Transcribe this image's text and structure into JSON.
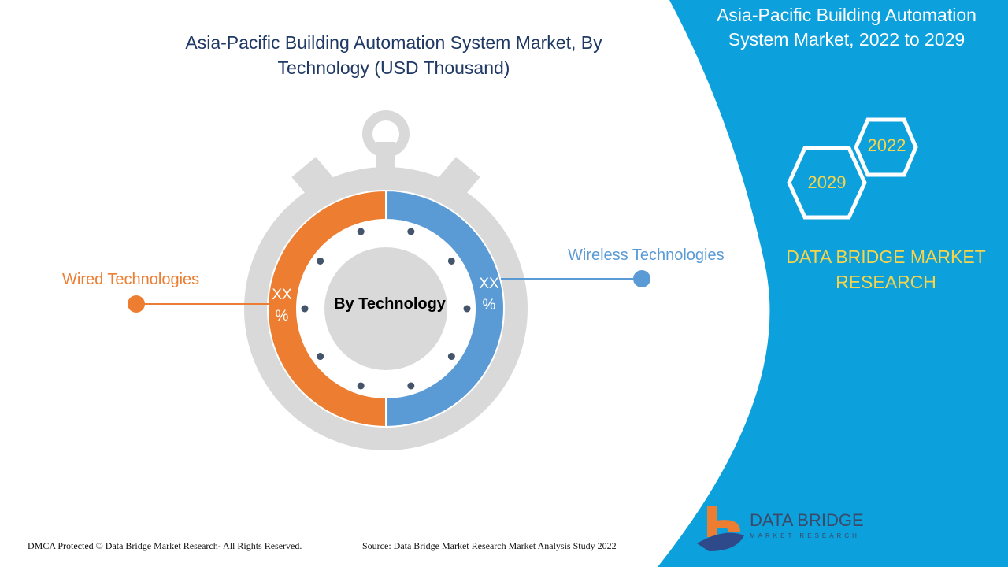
{
  "chart_data": {
    "type": "pie",
    "title": "Asia-Pacific Building Automation System Market, By Technology (USD Thousand)",
    "center_label": "By Technology",
    "categories": [
      "Wired Technologies",
      "Wireless Technologies"
    ],
    "values": [
      50,
      50
    ],
    "data_labels": [
      "XX %",
      "XX %"
    ],
    "colors": [
      "#ed7d31",
      "#5b9bd5"
    ]
  },
  "panel": {
    "title": "Asia-Pacific Building Automation System Market, 2022 to 2029",
    "year_start": "2022",
    "year_end": "2029",
    "brand": "DATA BRIDGE MARKET RESEARCH",
    "color": "#0ca0dc"
  },
  "logo": {
    "name": "DATA BRIDGE",
    "sub": "MARKET RESEARCH"
  },
  "footer": {
    "left": "DMCA Protected © Data Bridge Market Research- All Rights Reserved.",
    "source": "Source: Data Bridge Market Research Market Analysis Study 2022"
  }
}
